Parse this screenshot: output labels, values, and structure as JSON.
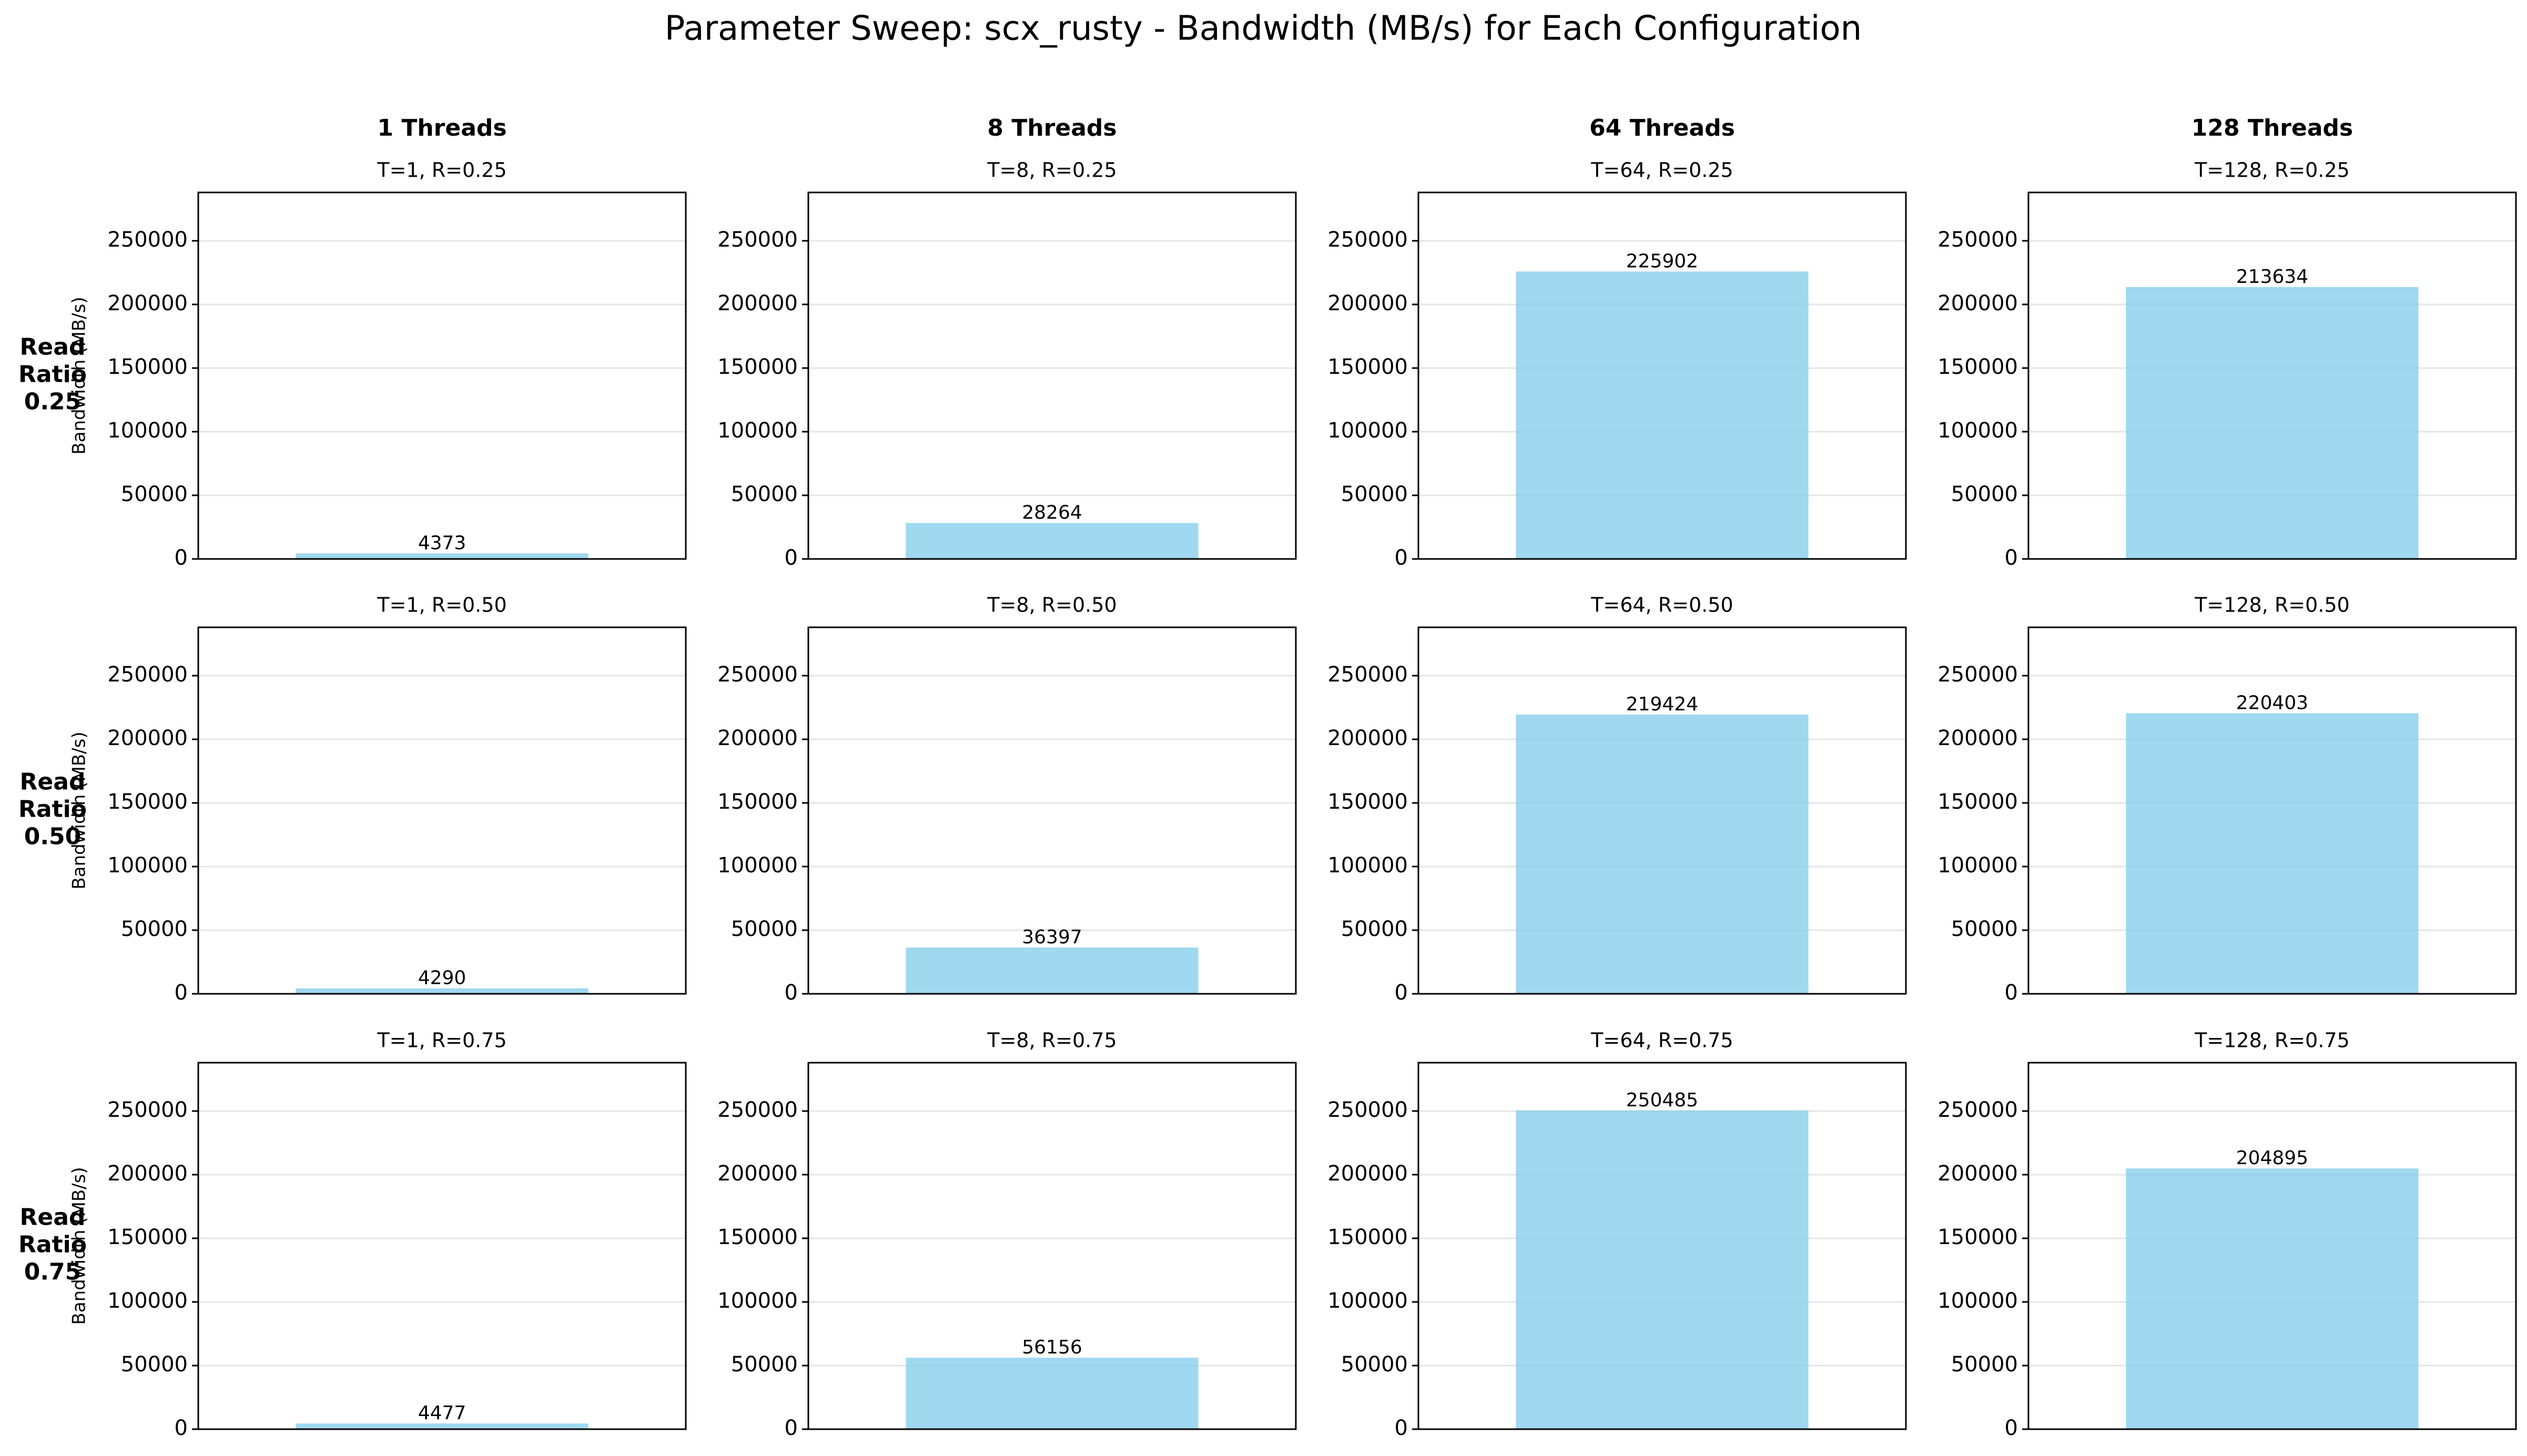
{
  "title": "Parameter Sweep: scx_rusty - Bandwidth (MB/s) for Each Configuration",
  "column_headers": [
    "1 Threads",
    "8 Threads",
    "64 Threads",
    "128 Threads"
  ],
  "row_headers": [
    [
      "Read",
      "Ratio",
      "0.25"
    ],
    [
      "Read",
      "Ratio",
      "0.50"
    ],
    [
      "Read",
      "Ratio",
      "0.75"
    ]
  ],
  "ylabel": "Bandwidth (MB/s)",
  "bar_color": "#87ceeb",
  "chart_data": {
    "type": "bar",
    "ylim": [
      0,
      288000
    ],
    "yticks": [
      "0",
      "50000",
      "100000",
      "150000",
      "200000",
      "250000"
    ],
    "grid": "horizontal",
    "panels": [
      {
        "title": "T=1, R=0.25",
        "value": 4373
      },
      {
        "title": "T=8, R=0.25",
        "value": 28264
      },
      {
        "title": "T=64, R=0.25",
        "value": 225902
      },
      {
        "title": "T=128, R=0.25",
        "value": 213634
      },
      {
        "title": "T=1, R=0.50",
        "value": 4290
      },
      {
        "title": "T=8, R=0.50",
        "value": 36397
      },
      {
        "title": "T=64, R=0.50",
        "value": 219424
      },
      {
        "title": "T=128, R=0.50",
        "value": 220403
      },
      {
        "title": "T=1, R=0.75",
        "value": 4477
      },
      {
        "title": "T=8, R=0.75",
        "value": 56156
      },
      {
        "title": "T=64, R=0.75",
        "value": 250485
      },
      {
        "title": "T=128, R=0.75",
        "value": 204895
      }
    ]
  }
}
